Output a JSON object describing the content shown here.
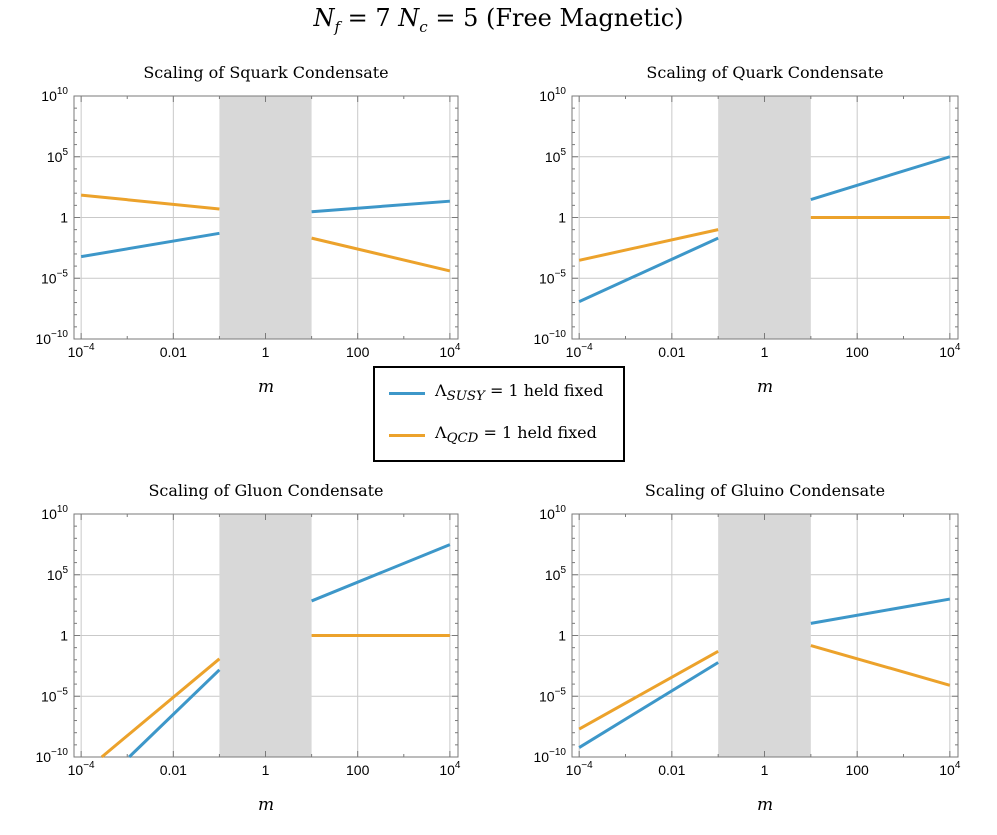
{
  "title": {
    "nf_var": "N",
    "nf_sub": "f",
    "nf_val": " = 7 ",
    "nc_var": "N",
    "nc_sub": "c",
    "nc_val": " = 5 ",
    "suffix": "(Free Magnetic)"
  },
  "colors": {
    "series1": "#3d97c9",
    "series2": "#eca22b",
    "band": "#d8d8d8",
    "grid": "#c9c9c9",
    "frame": "#7a7a7a"
  },
  "legend": {
    "items": [
      {
        "symbol": "Λ",
        "subscript": "SUSY",
        "text": " = 1 held fixed",
        "color": "#3d97c9"
      },
      {
        "symbol": "Λ",
        "subscript": "QCD",
        "text": " = 1 held fixed",
        "color": "#eca22b"
      }
    ]
  },
  "chart_data": [
    {
      "type": "line",
      "title": "Scaling of Squark Condensate",
      "xlabel": "m",
      "xscale": "log",
      "yscale": "log",
      "xlim": [
        7e-05,
        15000
      ],
      "ylim": [
        1e-10,
        10000000000.0
      ],
      "xticks": [
        {
          "v": 0.0001,
          "base": "10",
          "exp": "−4"
        },
        {
          "v": 0.01,
          "base": "0.01",
          "exp": ""
        },
        {
          "v": 1,
          "base": "1",
          "exp": ""
        },
        {
          "v": 100,
          "base": "100",
          "exp": ""
        },
        {
          "v": 10000,
          "base": "10",
          "exp": "4"
        }
      ],
      "yticks": [
        {
          "v": 1e-10,
          "base": "10",
          "exp": "−10"
        },
        {
          "v": 1e-05,
          "base": "10",
          "exp": "−5"
        },
        {
          "v": 1,
          "base": "1",
          "exp": ""
        },
        {
          "v": 100000.0,
          "base": "10",
          "exp": "5"
        },
        {
          "v": 10000000000.0,
          "base": "10",
          "exp": "10"
        }
      ],
      "shaded_region_x": [
        0.1,
        10
      ],
      "series": [
        {
          "name": "Λ_SUSY = 1 held fixed",
          "segments": [
            {
              "x": [
                0.0001,
                0.1
              ],
              "y": [
                0.0006,
                0.05
              ]
            },
            {
              "x": [
                10,
                10000
              ],
              "y": [
                3,
                22
              ]
            }
          ]
        },
        {
          "name": "Λ_QCD = 1 held fixed",
          "segments": [
            {
              "x": [
                0.0001,
                0.1
              ],
              "y": [
                70,
                5
              ]
            },
            {
              "x": [
                10,
                10000
              ],
              "y": [
                0.02,
                4e-05
              ]
            }
          ]
        }
      ]
    },
    {
      "type": "line",
      "title": "Scaling of Quark Condensate",
      "xlabel": "m",
      "xscale": "log",
      "yscale": "log",
      "xlim": [
        7e-05,
        15000
      ],
      "ylim": [
        1e-10,
        10000000000.0
      ],
      "xticks": [
        {
          "v": 0.0001,
          "base": "10",
          "exp": "−4"
        },
        {
          "v": 0.01,
          "base": "0.01",
          "exp": ""
        },
        {
          "v": 1,
          "base": "1",
          "exp": ""
        },
        {
          "v": 100,
          "base": "100",
          "exp": ""
        },
        {
          "v": 10000,
          "base": "10",
          "exp": "4"
        }
      ],
      "yticks": [
        {
          "v": 1e-10,
          "base": "10",
          "exp": "−10"
        },
        {
          "v": 1e-05,
          "base": "10",
          "exp": "−5"
        },
        {
          "v": 1,
          "base": "1",
          "exp": ""
        },
        {
          "v": 100000.0,
          "base": "10",
          "exp": "5"
        },
        {
          "v": 10000000000.0,
          "base": "10",
          "exp": "10"
        }
      ],
      "shaded_region_x": [
        0.1,
        10
      ],
      "series": [
        {
          "name": "Λ_SUSY = 1 held fixed",
          "segments": [
            {
              "x": [
                0.0001,
                0.1
              ],
              "y": [
                1.2e-07,
                0.02
              ]
            },
            {
              "x": [
                10,
                10000
              ],
              "y": [
                30,
                100000
              ]
            }
          ]
        },
        {
          "name": "Λ_QCD = 1 held fixed",
          "segments": [
            {
              "x": [
                0.0001,
                0.1
              ],
              "y": [
                0.0003,
                0.1
              ]
            },
            {
              "x": [
                10,
                10000
              ],
              "y": [
                1,
                1
              ]
            }
          ]
        }
      ]
    },
    {
      "type": "line",
      "title": "Scaling of Gluon Condensate",
      "xlabel": "m",
      "xscale": "log",
      "yscale": "log",
      "xlim": [
        7e-05,
        15000
      ],
      "ylim": [
        1e-10,
        10000000000.0
      ],
      "xticks": [
        {
          "v": 0.0001,
          "base": "10",
          "exp": "−4"
        },
        {
          "v": 0.01,
          "base": "0.01",
          "exp": ""
        },
        {
          "v": 1,
          "base": "1",
          "exp": ""
        },
        {
          "v": 100,
          "base": "100",
          "exp": ""
        },
        {
          "v": 10000,
          "base": "10",
          "exp": "4"
        }
      ],
      "yticks": [
        {
          "v": 1e-10,
          "base": "10",
          "exp": "−10"
        },
        {
          "v": 1e-05,
          "base": "10",
          "exp": "−5"
        },
        {
          "v": 1,
          "base": "1",
          "exp": ""
        },
        {
          "v": 100000.0,
          "base": "10",
          "exp": "5"
        },
        {
          "v": 10000000000.0,
          "base": "10",
          "exp": "10"
        }
      ],
      "shaded_region_x": [
        0.1,
        10
      ],
      "series": [
        {
          "name": "Λ_SUSY = 1 held fixed",
          "segments": [
            {
              "x": [
                0.0011,
                0.1
              ],
              "y": [
                1e-10,
                0.0015
              ]
            },
            {
              "x": [
                10,
                10000
              ],
              "y": [
                700,
                30000000.0
              ]
            }
          ]
        },
        {
          "name": "Λ_QCD = 1 held fixed",
          "segments": [
            {
              "x": [
                0.00028,
                0.1
              ],
              "y": [
                1e-10,
                0.012
              ]
            },
            {
              "x": [
                10,
                10000
              ],
              "y": [
                1,
                1
              ]
            }
          ]
        }
      ]
    },
    {
      "type": "line",
      "title": "Scaling of Gluino Condensate",
      "xlabel": "m",
      "xscale": "log",
      "yscale": "log",
      "xlim": [
        7e-05,
        15000
      ],
      "ylim": [
        1e-10,
        10000000000.0
      ],
      "xticks": [
        {
          "v": 0.0001,
          "base": "10",
          "exp": "−4"
        },
        {
          "v": 0.01,
          "base": "0.01",
          "exp": ""
        },
        {
          "v": 1,
          "base": "1",
          "exp": ""
        },
        {
          "v": 100,
          "base": "100",
          "exp": ""
        },
        {
          "v": 10000,
          "base": "10",
          "exp": "4"
        }
      ],
      "yticks": [
        {
          "v": 1e-10,
          "base": "10",
          "exp": "−10"
        },
        {
          "v": 1e-05,
          "base": "10",
          "exp": "−5"
        },
        {
          "v": 1,
          "base": "1",
          "exp": ""
        },
        {
          "v": 100000.0,
          "base": "10",
          "exp": "5"
        },
        {
          "v": 10000000000.0,
          "base": "10",
          "exp": "10"
        }
      ],
      "shaded_region_x": [
        0.1,
        10
      ],
      "series": [
        {
          "name": "Λ_SUSY = 1 held fixed",
          "segments": [
            {
              "x": [
                0.0001,
                0.1
              ],
              "y": [
                6e-10,
                0.006
              ]
            },
            {
              "x": [
                10,
                10000
              ],
              "y": [
                10,
                1000
              ]
            }
          ]
        },
        {
          "name": "Λ_QCD = 1 held fixed",
          "segments": [
            {
              "x": [
                0.0001,
                0.1
              ],
              "y": [
                2e-08,
                0.05
              ]
            },
            {
              "x": [
                10,
                10000
              ],
              "y": [
                0.15,
                8e-05
              ]
            }
          ]
        }
      ]
    }
  ]
}
